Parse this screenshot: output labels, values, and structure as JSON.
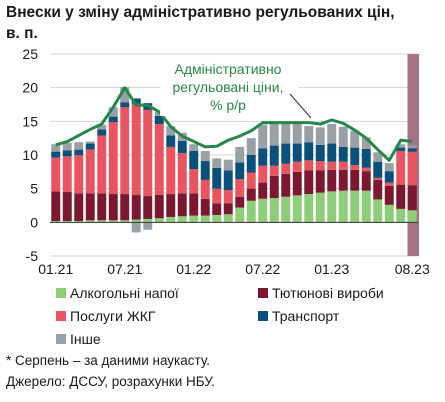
{
  "title_line1": "Внески у зміну адміністративно регульованих цін,",
  "title_line2": "в. п.",
  "annotation": [
    "Адміністративно",
    "регульовані ціни,",
    "% р/р"
  ],
  "footnotes": [
    "* Серпень – за даними наукасту.",
    "Джерело: ДССУ, розрахунки НБУ."
  ],
  "colors": {
    "alcohol": "#8fce79",
    "tobacco": "#7b1830",
    "utilities": "#e8555e",
    "transport": "#0b4f7b",
    "other": "#9aa1a6",
    "line": "#27874a",
    "forecast_band": "#a77384"
  },
  "chart_data": {
    "type": "bar",
    "stacked": true,
    "x_tick_labels": [
      "01.21",
      "07.21",
      "01.22",
      "07.22",
      "01.23",
      "08.23"
    ],
    "ylim": [
      -5,
      25
    ],
    "yticks": [
      -5,
      0,
      5,
      10,
      15,
      20,
      25
    ],
    "grid": "horizontal",
    "forecast_marker": "08.23*",
    "categories": [
      "01.21",
      "02.21",
      "03.21",
      "04.21",
      "05.21",
      "06.21",
      "07.21",
      "08.21",
      "09.21",
      "10.21",
      "11.21",
      "12.21",
      "01.22",
      "02.22",
      "03.22",
      "04.22",
      "05.22",
      "06.22",
      "07.22",
      "08.22",
      "09.22",
      "10.22",
      "11.22",
      "12.22",
      "01.23",
      "02.23",
      "03.23",
      "04.23",
      "05.23",
      "06.23",
      "07.23",
      "08.23"
    ],
    "series": [
      {
        "name": "Алкогольні напої",
        "key": "alcohol",
        "values": [
          0.2,
          0.2,
          0.2,
          0.3,
          0.3,
          0.3,
          0.3,
          0.4,
          0.5,
          0.6,
          0.8,
          0.9,
          1.0,
          1.0,
          1.1,
          1.2,
          2.2,
          3.2,
          3.5,
          3.6,
          3.8,
          4.0,
          4.2,
          4.4,
          4.6,
          4.7,
          4.7,
          4.7,
          3.4,
          2.6,
          2.0,
          1.8
        ]
      },
      {
        "name": "Тютюнові вироби",
        "key": "tobacco",
        "values": [
          4.4,
          4.3,
          4.1,
          4.0,
          4.0,
          3.9,
          3.9,
          3.7,
          3.4,
          3.5,
          3.4,
          3.4,
          3.3,
          2.5,
          1.7,
          1.6,
          1.6,
          1.8,
          2.4,
          3.3,
          3.4,
          3.5,
          3.5,
          3.3,
          3.2,
          3.1,
          3.1,
          2.9,
          2.9,
          2.8,
          3.6,
          3.7
        ]
      },
      {
        "name": "Послуги ЖКГ",
        "key": "utilities",
        "values": [
          5.0,
          5.3,
          5.7,
          6.5,
          8.6,
          10.7,
          12.9,
          13.5,
          12.8,
          10.5,
          7.0,
          6.0,
          3.6,
          2.8,
          2.2,
          2.0,
          2.6,
          2.4,
          2.5,
          1.5,
          1.5,
          1.5,
          1.5,
          1.4,
          1.2,
          1.2,
          0.7,
          0.5,
          0.3,
          0.5,
          5.0,
          5.0
        ]
      },
      {
        "name": "Транспорт",
        "key": "transport",
        "values": [
          0.9,
          0.9,
          0.8,
          0.9,
          0.9,
          0.8,
          0.7,
          0.8,
          1.0,
          1.2,
          1.7,
          1.8,
          2.7,
          2.8,
          3.1,
          2.9,
          2.5,
          2.6,
          2.6,
          3.0,
          3.0,
          2.7,
          2.7,
          2.4,
          2.7,
          2.2,
          2.6,
          2.8,
          2.4,
          1.7,
          0.5,
          0.5
        ]
      },
      {
        "name": "Інше",
        "key": "other",
        "values": [
          1.1,
          1.1,
          1.1,
          0.3,
          0.7,
          1.4,
          2.3,
          -1.5,
          -1.1,
          0.6,
          1.4,
          1.2,
          1.0,
          1.5,
          1.4,
          1.6,
          2.3,
          2.5,
          3.5,
          3.3,
          3.1,
          2.9,
          2.4,
          2.6,
          2.9,
          3.0,
          2.5,
          1.7,
          1.4,
          1.2,
          0.5,
          0.4
        ]
      }
    ],
    "line": {
      "name": "Адміністративно регульовані ціни, % р/р",
      "values": [
        11.5,
        12.0,
        12.9,
        13.8,
        14.6,
        17.1,
        20.0,
        17.4,
        17.4,
        16.4,
        14.2,
        12.8,
        12.0,
        11.2,
        11.3,
        12.2,
        12.8,
        13.6,
        14.8,
        14.8,
        14.8,
        14.8,
        14.8,
        14.6,
        15.2,
        14.7,
        13.7,
        12.5,
        10.8,
        9.2,
        12.2,
        12.0
      ]
    },
    "legend": [
      {
        "label": "Алкогольні напої",
        "key": "alcohol"
      },
      {
        "label": "Тютюнові вироби",
        "key": "tobacco"
      },
      {
        "label": "Послуги ЖКГ",
        "key": "utilities"
      },
      {
        "label": "Транспорт",
        "key": "transport"
      },
      {
        "label": "Інше",
        "key": "other"
      }
    ]
  }
}
